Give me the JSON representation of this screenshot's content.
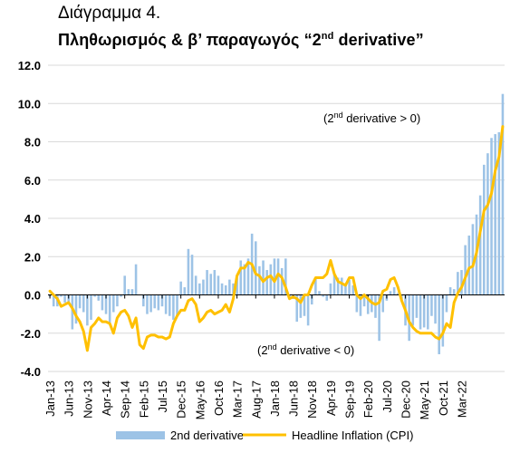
{
  "title": "Διάγραμμα 4.",
  "subtitle": {
    "pre": "Πληθωρισμός & β’ παραγωγός “2",
    "sup": "nd",
    "post": " derivative”"
  },
  "annotations": {
    "upper": {
      "pre": "(2",
      "sup": "nd",
      "post": " derivative > 0)"
    },
    "lower": {
      "pre": "(2",
      "sup": "nd",
      "post": " derivative < 0)"
    }
  },
  "colors": {
    "bar": "#9DC3E6",
    "line": "#FFC000",
    "axis": "#000000"
  },
  "chart_data": {
    "type": "bar",
    "ylim": [
      -4,
      12
    ],
    "yticks": [
      -4.0,
      -2.0,
      0.0,
      2.0,
      4.0,
      6.0,
      8.0,
      10.0,
      12.0
    ],
    "ytick_labels": [
      "-4.0",
      "-2.0",
      "0.0",
      "2.0",
      "4.0",
      "6.0",
      "8.0",
      "10.0",
      "12.0"
    ],
    "x_tick_labels": [
      "Jan-13",
      "Jun-13",
      "Nov-13",
      "Apr-14",
      "Sep-14",
      "Feb-15",
      "Jul-15",
      "Dec-15",
      "May-16",
      "Oct-16",
      "Mar-17",
      "Aug-17",
      "Jan-18",
      "Jun-18",
      "Nov-18",
      "Apr-19",
      "Sep-19",
      "Feb-20",
      "Jul-20",
      "Dec-20",
      "May-21",
      "Oct-21",
      "Mar-22"
    ],
    "x_start": "Jan-13",
    "x_end": "Mar-22",
    "grid": true,
    "legend_position": "bottom",
    "series": [
      {
        "name": "2nd derivative",
        "type": "bar",
        "values": [
          -0.1,
          -0.6,
          -0.6,
          -0.1,
          -0.4,
          -0.5,
          -1.8,
          -1.5,
          -0.7,
          -0.9,
          -1.6,
          -1.3,
          -0.1,
          -0.3,
          -0.8,
          -1.0,
          -1.5,
          -0.9,
          -0.6,
          -0.1,
          1.0,
          0.3,
          0.3,
          1.6,
          0.0,
          -0.6,
          -1.0,
          -0.9,
          -0.7,
          -0.8,
          -0.6,
          -1.0,
          -1.1,
          -1.3,
          -1.1,
          0.7,
          0.4,
          2.4,
          2.1,
          1.0,
          0.6,
          0.8,
          1.3,
          1.1,
          1.3,
          1.0,
          0.6,
          0.5,
          0.8,
          0.6,
          0.9,
          1.8,
          1.6,
          1.9,
          3.2,
          2.8,
          1.5,
          1.8,
          1.3,
          1.6,
          1.9,
          1.9,
          1.4,
          1.9,
          -0.1,
          -0.2,
          -1.4,
          -1.2,
          -1.1,
          -1.6,
          -0.5,
          0.9,
          0.2,
          -0.1,
          -0.3,
          0.6,
          1.1,
          0.9,
          0.9,
          0.6,
          0.8,
          0.5,
          -0.9,
          -1.1,
          -0.6,
          -1.0,
          -0.9,
          -1.2,
          -2.4,
          -0.9,
          -0.3,
          0.2,
          0.4,
          0.1,
          -0.3,
          -1.6,
          -2.4,
          -1.6,
          -1.2,
          -1.8,
          -1.7,
          -1.8,
          -1.1,
          -1.5,
          -3.1,
          -2.7,
          -0.9,
          0.4,
          0.3,
          1.2,
          1.3,
          2.6,
          3.1,
          3.7,
          4.2,
          5.2,
          6.8,
          7.4,
          8.2,
          8.4,
          8.5,
          10.5
        ]
      },
      {
        "name": "Headline Inflation (CPI)",
        "type": "line",
        "values": [
          0.2,
          0.0,
          -0.2,
          -0.6,
          -0.5,
          -0.4,
          -0.7,
          -1.1,
          -1.4,
          -1.9,
          -2.9,
          -1.7,
          -1.5,
          -1.2,
          -1.4,
          -1.4,
          -1.5,
          -2.0,
          -1.2,
          -0.9,
          -0.8,
          -1.1,
          -1.7,
          -1.2,
          -2.6,
          -2.8,
          -2.2,
          -2.1,
          -2.1,
          -2.2,
          -2.2,
          -2.3,
          -2.2,
          -1.5,
          -1.1,
          -0.8,
          -0.8,
          -0.3,
          -0.2,
          -0.5,
          -1.4,
          -1.2,
          -0.9,
          -0.8,
          -1.0,
          -0.9,
          -0.8,
          -0.5,
          -0.9,
          -0.2,
          1.0,
          1.4,
          1.4,
          1.7,
          1.6,
          1.1,
          1.0,
          0.7,
          0.9,
          1.0,
          0.7,
          1.1,
          0.9,
          0.4,
          -0.2,
          -0.1,
          -0.2,
          -0.4,
          0.0,
          0.0,
          0.5,
          0.9,
          0.9,
          0.9,
          1.1,
          1.8,
          1.1,
          0.7,
          0.6,
          0.5,
          0.9,
          0.9,
          0.0,
          -0.2,
          0.0,
          -0.2,
          -0.4,
          -0.5,
          -0.4,
          0.2,
          0.3,
          0.8,
          0.9,
          0.4,
          -0.3,
          -0.8,
          -1.4,
          -1.7,
          -1.9,
          -2.0,
          -2.0,
          -2.0,
          -2.0,
          -2.2,
          -2.3,
          -2.0,
          -1.5,
          -1.7,
          -0.4,
          0.1,
          0.4,
          0.9,
          1.4,
          1.5,
          2.2,
          3.3,
          4.4,
          4.7,
          5.3,
          6.5,
          7.2,
          8.8
        ]
      }
    ]
  }
}
